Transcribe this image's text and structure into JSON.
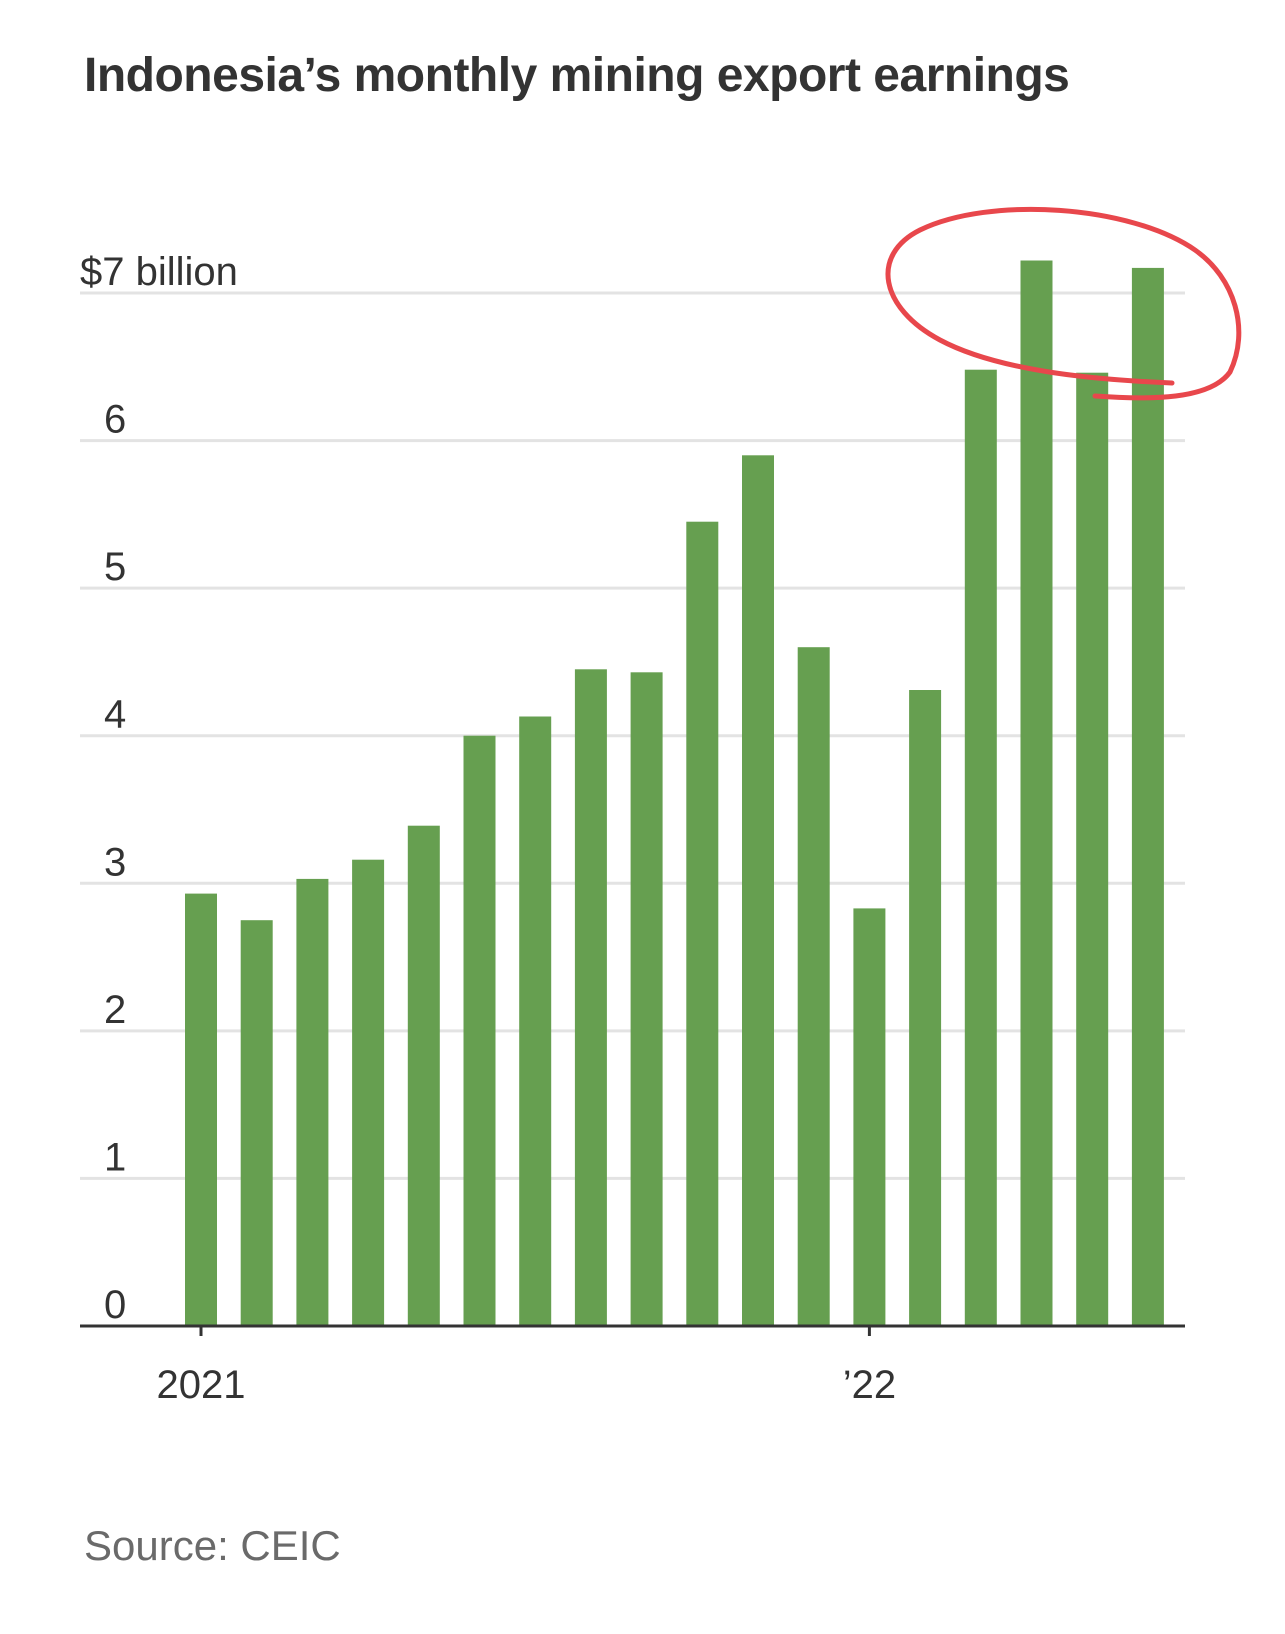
{
  "source": "Source: CEIC",
  "chart_data": {
    "type": "bar",
    "title": "Indonesia’s monthly mining export earnings",
    "unit_label": "$7 billion",
    "ylim": [
      0,
      7
    ],
    "yticks": [
      0,
      1,
      2,
      3,
      4,
      5,
      6,
      7
    ],
    "ytick_labels": [
      "0",
      "1",
      "2",
      "3",
      "4",
      "5",
      "6",
      "$7 billion"
    ],
    "x_tick_labels": [
      {
        "index": 0,
        "label": "2021"
      },
      {
        "index": 12,
        "label": "’22"
      }
    ],
    "grid": true,
    "bar_color": "#669f50",
    "annotation_color": "#e8474c",
    "values": [
      2.93,
      2.75,
      3.03,
      3.16,
      3.39,
      4.0,
      4.13,
      4.45,
      4.43,
      5.45,
      5.9,
      4.6,
      2.83,
      4.31,
      6.48,
      7.22,
      6.46,
      7.17
    ]
  }
}
